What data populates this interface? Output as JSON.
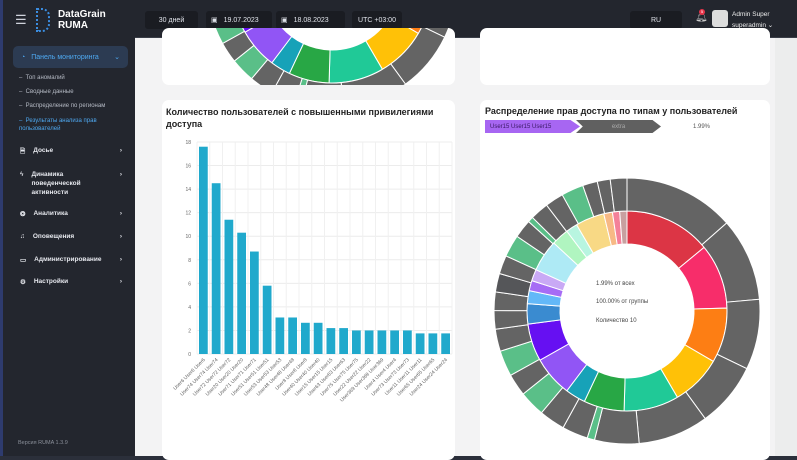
{
  "app": {
    "title": "DataGrain RUMA",
    "version": "Версия RUMA 1.3.9"
  },
  "header": {
    "period": "30 дней",
    "date_from": "19.07.2023",
    "date_to": "18.08.2023",
    "timezone": "UTC +03:00",
    "language": "RU",
    "notifications_count": "5",
    "user_name": "Admin Super",
    "user_login": "superadmin"
  },
  "sidebar": {
    "active": "Панель мониторинга",
    "subitems": [
      "Топ аномалий",
      "Сводные данные",
      "Распределение по регионам",
      "Результаты анализа прав пользователей"
    ],
    "items": [
      {
        "label": "Досье",
        "icon": "file-icon"
      },
      {
        "label": "Динамика поведенческой активности",
        "icon": "activity-icon"
      },
      {
        "label": "Аналитика",
        "icon": "analytics-icon"
      },
      {
        "label": "Оповещения",
        "icon": "bell-icon"
      },
      {
        "label": "Администрирование",
        "icon": "monitor-icon"
      },
      {
        "label": "Настройки",
        "icon": "gear-icon"
      }
    ]
  },
  "bar_card": {
    "title": "Количество пользователей с повышенными привилегиями доступа"
  },
  "pie_card": {
    "title": "Распределение прав доступа по типам у пользователей",
    "breadcrumb": [
      "User15 User15 User15",
      "extra"
    ],
    "percent": "1.99%",
    "center": [
      "1.99% от всех",
      "100.00% от группы",
      "Количество 10"
    ]
  },
  "chart_data": [
    {
      "type": "bar",
      "categories": [
        "User6 User6 User6",
        "User74 User74 User74",
        "User72 User72 User72",
        "User20 User20 User20",
        "User71 User71 User71",
        "User51 User51 User51",
        "User53 User53 User53",
        "User48 User48 User48",
        "User8 User8 User8",
        "User40 User40 User40",
        "User15 User15 User15",
        "User63 User63 User63",
        "User75 User75 User75",
        "User22 User22 User22",
        "User369 User369 User369",
        "User4 User4 User4",
        "User73 User73 User73",
        "User11 User11 User11",
        "User65 User65 User65",
        "User24 User24 User24"
      ],
      "values": [
        17.6,
        14.5,
        11.4,
        10.3,
        8.7,
        5.8,
        3.1,
        3.1,
        2.65,
        2.65,
        2.2,
        2.2,
        2,
        2,
        2,
        2,
        2,
        1.75,
        1.75,
        1.75
      ],
      "yticks": [
        "0",
        "2",
        "4",
        "6",
        "8",
        "10",
        "12",
        "14",
        "16",
        "18"
      ],
      "ylim": [
        0,
        18
      ],
      "grid": true,
      "color": "#20a9cc"
    },
    {
      "type": "sunburst",
      "inner": [
        {
          "v": 60,
          "c": "#dc3545"
        },
        {
          "v": 45,
          "c": "#f72d6a"
        },
        {
          "v": 38,
          "c": "#fd7e14"
        },
        {
          "v": 35,
          "c": "#ffc107"
        },
        {
          "v": 38,
          "c": "#20c997"
        },
        {
          "v": 28,
          "c": "#28a745"
        },
        {
          "v": 14,
          "c": "#17a2b8"
        },
        {
          "v": 28,
          "c": "#9155f5"
        },
        {
          "v": 26,
          "c": "#6610f2"
        },
        {
          "v": 14,
          "c": "#3a8bd0"
        },
        {
          "v": 9,
          "c": "#63b8f8"
        },
        {
          "v": 7,
          "c": "#a66cf5"
        },
        {
          "v": 8,
          "c": "#c9a9f5"
        },
        {
          "v": 22,
          "c": "#aeeaf5"
        },
        {
          "v": 12,
          "c": "#b0f5c0"
        },
        {
          "v": 8,
          "c": "#b8f5e0"
        },
        {
          "v": 20,
          "c": "#f8d985"
        },
        {
          "v": 6,
          "c": "#f7b985"
        },
        {
          "v": 5,
          "c": "#f48099"
        },
        {
          "v": 5,
          "c": "#c8a0a0"
        }
      ],
      "outer": [
        {
          "v": 60,
          "c": "#646464"
        },
        {
          "v": 45,
          "c": "#646464"
        },
        {
          "v": 38,
          "c": "#646464"
        },
        {
          "v": 35,
          "c": "#646464"
        },
        {
          "v": 38,
          "c": "#646464"
        },
        {
          "v": 24,
          "c": "#646464"
        },
        {
          "v": 4,
          "c": "#5abf88"
        },
        {
          "v": 14,
          "c": "#646464"
        },
        {
          "v": 14,
          "c": "#646464"
        },
        {
          "v": 14,
          "c": "#5abf88"
        },
        {
          "v": 12,
          "c": "#646464"
        },
        {
          "v": 14,
          "c": "#5abf88"
        },
        {
          "v": 12,
          "c": "#646464"
        },
        {
          "v": 10,
          "c": "#646464"
        },
        {
          "v": 10,
          "c": "#646464"
        },
        {
          "v": 10,
          "c": "#555659"
        },
        {
          "v": 10,
          "c": "#646464"
        },
        {
          "v": 12,
          "c": "#5abf88"
        },
        {
          "v": 10,
          "c": "#646464"
        },
        {
          "v": 3,
          "c": "#5abf88"
        },
        {
          "v": 10,
          "c": "#646464"
        },
        {
          "v": 10,
          "c": "#646464"
        },
        {
          "v": 12,
          "c": "#5abf88"
        },
        {
          "v": 8,
          "c": "#646464"
        },
        {
          "v": 7,
          "c": "#646464"
        },
        {
          "v": 9,
          "c": "#646464"
        }
      ]
    }
  ]
}
